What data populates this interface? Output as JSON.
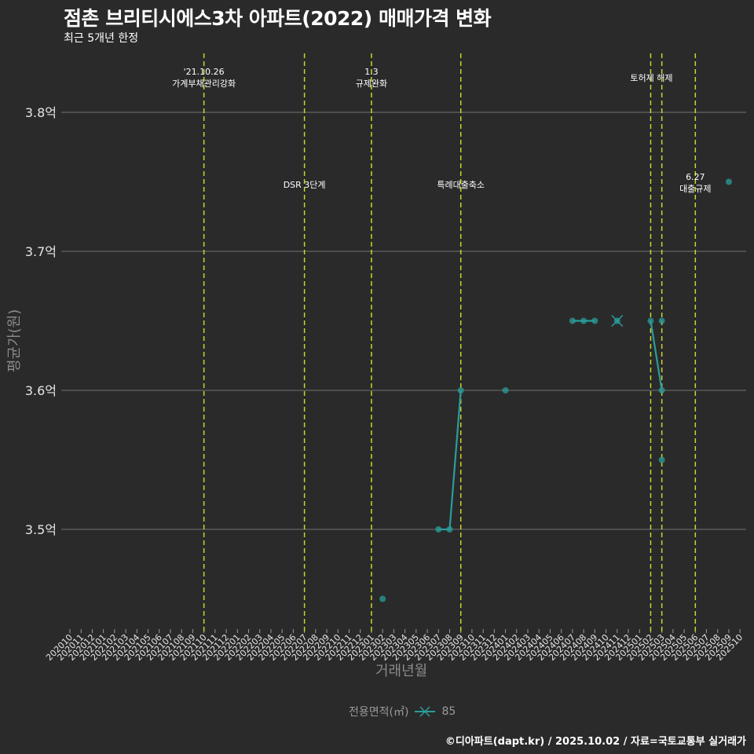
{
  "header": {
    "title": "점촌 브리티시에스3차 아파트(2022) 매매가격 변화",
    "subtitle": "최근 5개년 한정"
  },
  "axes": {
    "ylabel": "평균가(원)",
    "xlabel": "거래년월"
  },
  "legend": {
    "title": "전용면적(㎡)",
    "items": [
      {
        "label": "85",
        "color": "#2a9d9a",
        "marker": "x-line"
      }
    ]
  },
  "caption": "©디아파트(dapt.kr) / 2025.10.02 / 자료=국토교통부 실거래가",
  "colors": {
    "background": "#2a2a2b",
    "grid": "#5a5a5a",
    "series": "#2a9d9a",
    "event_line": "#c8d62a"
  },
  "chart_data": {
    "type": "line",
    "title": "점촌 브리티시에스3차 아파트(2022) 매매가격 변화",
    "subtitle": "최근 5개년 한정",
    "xlabel": "거래년월",
    "ylabel": "평균가(원)",
    "ylim": [
      3.43,
      3.84
    ],
    "yticks": [
      3.5,
      3.6,
      3.7,
      3.8
    ],
    "ytick_labels": [
      "3.5억",
      "3.6억",
      "3.7억",
      "3.8억"
    ],
    "grid": "horizontal",
    "legend_position": "bottom",
    "categories": [
      "202010",
      "202011",
      "202012",
      "202101",
      "202102",
      "202103",
      "202104",
      "202105",
      "202106",
      "202107",
      "202108",
      "202109",
      "202110",
      "202111",
      "202112",
      "202201",
      "202202",
      "202203",
      "202204",
      "202205",
      "202206",
      "202207",
      "202208",
      "202209",
      "202210",
      "202211",
      "202212",
      "202301",
      "202302",
      "202303",
      "202304",
      "202305",
      "202306",
      "202307",
      "202308",
      "202309",
      "202310",
      "202311",
      "202312",
      "202401",
      "202402",
      "202403",
      "202404",
      "202405",
      "202406",
      "202407",
      "202408",
      "202409",
      "202410",
      "202411",
      "202412",
      "202501",
      "202502",
      "202503",
      "202504",
      "202505",
      "202506",
      "202507",
      "202508",
      "202509",
      "202510"
    ],
    "series": [
      {
        "name": "85",
        "points": [
          {
            "x": "202302",
            "y": 3.45
          },
          {
            "x": "202307",
            "y": 3.5
          },
          {
            "x": "202308",
            "y": 3.5
          },
          {
            "x": "202309",
            "y": 3.6
          },
          {
            "x": "202401",
            "y": 3.6
          },
          {
            "x": "202407",
            "y": 3.65
          },
          {
            "x": "202408",
            "y": 3.65
          },
          {
            "x": "202409",
            "y": 3.65
          },
          {
            "x": "202411",
            "y": 3.65
          },
          {
            "x": "202502",
            "y": 3.65
          },
          {
            "x": "202503",
            "y": 3.65
          },
          {
            "x": "202503",
            "y": 3.6
          },
          {
            "x": "202503",
            "y": 3.55
          },
          {
            "x": "202509",
            "y": 3.75
          }
        ],
        "line_segments": [
          [
            [
              "202307",
              3.5
            ],
            [
              "202308",
              3.5
            ],
            [
              "202309",
              3.6
            ]
          ],
          [
            [
              "202407",
              3.65
            ],
            [
              "202408",
              3.65
            ],
            [
              "202409",
              3.65
            ]
          ],
          [
            [
              "202502",
              3.65
            ],
            [
              "202503",
              3.6
            ]
          ]
        ]
      }
    ],
    "annotations": [
      {
        "x": "202110",
        "lines": [
          "'21.10.26",
          "가계부채관리강화"
        ],
        "pos": "top"
      },
      {
        "x": "202207",
        "lines": [
          "DSR 3단계"
        ],
        "pos": "mid"
      },
      {
        "x": "202301",
        "lines": [
          "1.3",
          "규제완화"
        ],
        "pos": "top"
      },
      {
        "x": "202309",
        "lines": [
          "특례대출축소"
        ],
        "pos": "mid"
      },
      {
        "x": "202502",
        "lines": [
          "토허제 해제"
        ],
        "pos": "top"
      },
      {
        "x": "202503",
        "lines": [],
        "pos": "none"
      },
      {
        "x": "202506",
        "lines": [
          "6.27",
          "대출규제"
        ],
        "pos": "mid"
      }
    ]
  }
}
